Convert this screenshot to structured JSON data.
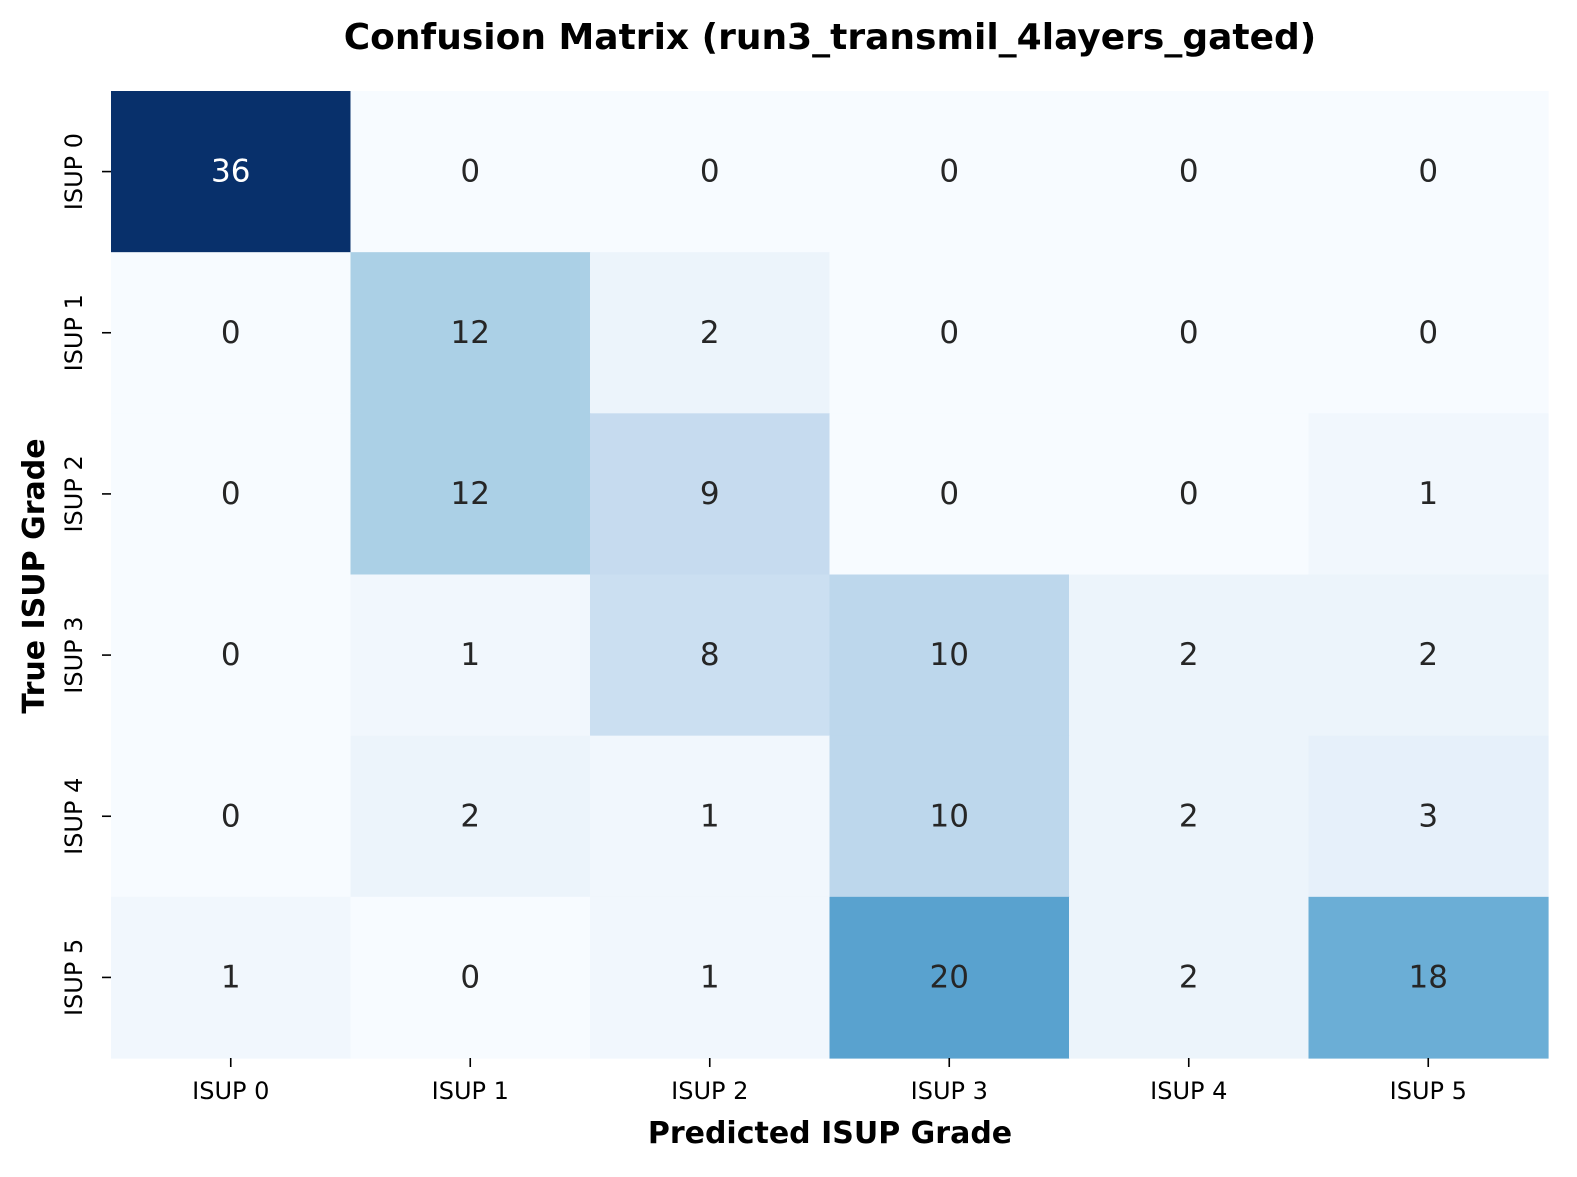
{
  "chart_data": {
    "type": "heatmap",
    "title": "Confusion Matrix (run3_transmil_4layers_gated)",
    "xlabel": "Predicted ISUP Grade",
    "ylabel": "True ISUP Grade",
    "x_categories": [
      "ISUP 0",
      "ISUP 1",
      "ISUP 2",
      "ISUP 3",
      "ISUP 4",
      "ISUP 5"
    ],
    "y_categories": [
      "ISUP 0",
      "ISUP 1",
      "ISUP 2",
      "ISUP 3",
      "ISUP 4",
      "ISUP 5"
    ],
    "values": [
      [
        36,
        0,
        0,
        0,
        0,
        0
      ],
      [
        0,
        12,
        2,
        0,
        0,
        0
      ],
      [
        0,
        12,
        9,
        0,
        0,
        1
      ],
      [
        0,
        1,
        8,
        10,
        2,
        2
      ],
      [
        0,
        2,
        1,
        10,
        2,
        3
      ],
      [
        1,
        0,
        1,
        20,
        2,
        18
      ]
    ],
    "value_range": [
      0,
      36
    ],
    "colormap": "Blues",
    "colorbar": false,
    "annotated": true
  },
  "colors": {
    "text_dark": "#262626",
    "text_light": "#ffffff",
    "blues_ramp": [
      "#f7fbff",
      "#deebf7",
      "#c6dbef",
      "#9ecae1",
      "#6baed6",
      "#4292c6",
      "#2171b5",
      "#08519c",
      "#08306b"
    ]
  }
}
